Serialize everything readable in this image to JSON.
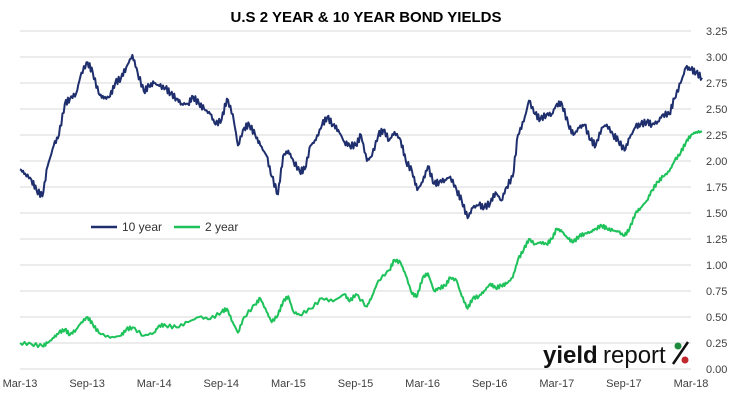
{
  "chart_data": {
    "type": "line",
    "title": "U.S 2 YEAR & 10 YEAR BOND YIELDS",
    "xlabel": "",
    "ylabel": "",
    "x_tick_labels": [
      "Mar-13",
      "Sep-13",
      "Mar-14",
      "Sep-14",
      "Mar-15",
      "Sep-15",
      "Mar-16",
      "Sep-16",
      "Mar-17",
      "Sep-17",
      "Mar-18"
    ],
    "x_range": [
      "2013-03-01",
      "2018-03-01"
    ],
    "y_range": [
      0,
      3.25
    ],
    "y_ticks": [
      "0.00",
      "0.25",
      "0.50",
      "0.75",
      "1.00",
      "1.25",
      "1.50",
      "1.75",
      "2.00",
      "2.25",
      "2.50",
      "2.75",
      "3.00",
      "3.25"
    ],
    "y_axis_side": "right",
    "grid": "horizontal",
    "legend_position": "left, middle",
    "series": [
      {
        "name": "10 year",
        "color": "#1f2f6e",
        "points": [
          [
            "2013-03-01",
            1.92
          ],
          [
            "2013-03-15",
            1.88
          ],
          [
            "2013-04-01",
            1.82
          ],
          [
            "2013-04-15",
            1.72
          ],
          [
            "2013-05-01",
            1.66
          ],
          [
            "2013-05-15",
            1.95
          ],
          [
            "2013-06-01",
            2.15
          ],
          [
            "2013-06-15",
            2.25
          ],
          [
            "2013-07-01",
            2.55
          ],
          [
            "2013-07-15",
            2.6
          ],
          [
            "2013-08-01",
            2.65
          ],
          [
            "2013-08-15",
            2.85
          ],
          [
            "2013-09-01",
            2.95
          ],
          [
            "2013-09-15",
            2.85
          ],
          [
            "2013-10-01",
            2.65
          ],
          [
            "2013-10-15",
            2.6
          ],
          [
            "2013-11-01",
            2.62
          ],
          [
            "2013-11-15",
            2.75
          ],
          [
            "2013-12-01",
            2.8
          ],
          [
            "2013-12-15",
            2.9
          ],
          [
            "2014-01-01",
            3.02
          ],
          [
            "2014-01-15",
            2.85
          ],
          [
            "2014-02-01",
            2.67
          ],
          [
            "2014-02-15",
            2.72
          ],
          [
            "2014-03-01",
            2.75
          ],
          [
            "2014-03-15",
            2.72
          ],
          [
            "2014-04-01",
            2.7
          ],
          [
            "2014-04-15",
            2.65
          ],
          [
            "2014-05-01",
            2.6
          ],
          [
            "2014-05-15",
            2.55
          ],
          [
            "2014-06-01",
            2.55
          ],
          [
            "2014-06-15",
            2.62
          ],
          [
            "2014-07-01",
            2.55
          ],
          [
            "2014-07-15",
            2.5
          ],
          [
            "2014-08-01",
            2.45
          ],
          [
            "2014-08-15",
            2.35
          ],
          [
            "2014-09-01",
            2.4
          ],
          [
            "2014-09-15",
            2.6
          ],
          [
            "2014-10-01",
            2.45
          ],
          [
            "2014-10-15",
            2.15
          ],
          [
            "2014-11-01",
            2.32
          ],
          [
            "2014-11-15",
            2.35
          ],
          [
            "2014-12-01",
            2.25
          ],
          [
            "2014-12-15",
            2.15
          ],
          [
            "2015-01-01",
            2.05
          ],
          [
            "2015-01-15",
            1.85
          ],
          [
            "2015-02-01",
            1.68
          ],
          [
            "2015-02-15",
            2.05
          ],
          [
            "2015-03-01",
            2.1
          ],
          [
            "2015-03-15",
            2.0
          ],
          [
            "2015-04-01",
            1.9
          ],
          [
            "2015-04-15",
            1.92
          ],
          [
            "2015-05-01",
            2.15
          ],
          [
            "2015-05-15",
            2.2
          ],
          [
            "2015-06-01",
            2.35
          ],
          [
            "2015-06-15",
            2.42
          ],
          [
            "2015-07-01",
            2.35
          ],
          [
            "2015-07-15",
            2.3
          ],
          [
            "2015-08-01",
            2.18
          ],
          [
            "2015-08-15",
            2.15
          ],
          [
            "2015-09-01",
            2.15
          ],
          [
            "2015-09-15",
            2.25
          ],
          [
            "2015-10-01",
            2.0
          ],
          [
            "2015-10-15",
            2.05
          ],
          [
            "2015-11-01",
            2.25
          ],
          [
            "2015-11-15",
            2.3
          ],
          [
            "2015-12-01",
            2.2
          ],
          [
            "2015-12-15",
            2.28
          ],
          [
            "2016-01-01",
            2.2
          ],
          [
            "2016-01-15",
            2.0
          ],
          [
            "2016-02-01",
            1.9
          ],
          [
            "2016-02-15",
            1.72
          ],
          [
            "2016-03-01",
            1.8
          ],
          [
            "2016-03-15",
            1.95
          ],
          [
            "2016-04-01",
            1.78
          ],
          [
            "2016-04-15",
            1.8
          ],
          [
            "2016-05-01",
            1.82
          ],
          [
            "2016-05-15",
            1.85
          ],
          [
            "2016-06-01",
            1.72
          ],
          [
            "2016-06-15",
            1.62
          ],
          [
            "2016-07-01",
            1.45
          ],
          [
            "2016-07-15",
            1.55
          ],
          [
            "2016-08-01",
            1.58
          ],
          [
            "2016-08-15",
            1.55
          ],
          [
            "2016-09-01",
            1.6
          ],
          [
            "2016-09-15",
            1.7
          ],
          [
            "2016-10-01",
            1.62
          ],
          [
            "2016-10-15",
            1.75
          ],
          [
            "2016-11-01",
            1.85
          ],
          [
            "2016-11-15",
            2.25
          ],
          [
            "2016-12-01",
            2.38
          ],
          [
            "2016-12-15",
            2.58
          ],
          [
            "2017-01-01",
            2.45
          ],
          [
            "2017-01-15",
            2.4
          ],
          [
            "2017-02-01",
            2.45
          ],
          [
            "2017-02-15",
            2.45
          ],
          [
            "2017-03-01",
            2.55
          ],
          [
            "2017-03-15",
            2.55
          ],
          [
            "2017-04-01",
            2.35
          ],
          [
            "2017-04-15",
            2.25
          ],
          [
            "2017-05-01",
            2.32
          ],
          [
            "2017-05-15",
            2.35
          ],
          [
            "2017-06-01",
            2.2
          ],
          [
            "2017-06-15",
            2.15
          ],
          [
            "2017-07-01",
            2.32
          ],
          [
            "2017-07-15",
            2.35
          ],
          [
            "2017-08-01",
            2.25
          ],
          [
            "2017-08-15",
            2.2
          ],
          [
            "2017-09-01",
            2.1
          ],
          [
            "2017-09-15",
            2.22
          ],
          [
            "2017-10-01",
            2.33
          ],
          [
            "2017-10-15",
            2.35
          ],
          [
            "2017-11-01",
            2.38
          ],
          [
            "2017-11-15",
            2.35
          ],
          [
            "2017-12-01",
            2.38
          ],
          [
            "2017-12-15",
            2.45
          ],
          [
            "2018-01-01",
            2.45
          ],
          [
            "2018-01-15",
            2.6
          ],
          [
            "2018-02-01",
            2.75
          ],
          [
            "2018-02-15",
            2.9
          ],
          [
            "2018-03-01",
            2.88
          ],
          [
            "2018-03-15",
            2.85
          ],
          [
            "2018-03-31",
            2.8
          ]
        ]
      },
      {
        "name": "2 year",
        "color": "#1ec25a",
        "points": [
          [
            "2013-03-01",
            0.25
          ],
          [
            "2013-04-01",
            0.24
          ],
          [
            "2013-05-01",
            0.22
          ],
          [
            "2013-05-15",
            0.25
          ],
          [
            "2013-06-01",
            0.3
          ],
          [
            "2013-06-15",
            0.35
          ],
          [
            "2013-07-01",
            0.38
          ],
          [
            "2013-07-15",
            0.33
          ],
          [
            "2013-08-01",
            0.38
          ],
          [
            "2013-08-15",
            0.45
          ],
          [
            "2013-09-01",
            0.5
          ],
          [
            "2013-09-15",
            0.43
          ],
          [
            "2013-10-01",
            0.35
          ],
          [
            "2013-11-01",
            0.3
          ],
          [
            "2013-12-01",
            0.32
          ],
          [
            "2013-12-15",
            0.38
          ],
          [
            "2014-01-01",
            0.4
          ],
          [
            "2014-02-01",
            0.32
          ],
          [
            "2014-03-01",
            0.35
          ],
          [
            "2014-03-15",
            0.42
          ],
          [
            "2014-04-01",
            0.42
          ],
          [
            "2014-05-01",
            0.4
          ],
          [
            "2014-06-01",
            0.45
          ],
          [
            "2014-07-01",
            0.5
          ],
          [
            "2014-08-01",
            0.48
          ],
          [
            "2014-09-01",
            0.55
          ],
          [
            "2014-09-15",
            0.58
          ],
          [
            "2014-10-01",
            0.45
          ],
          [
            "2014-10-15",
            0.35
          ],
          [
            "2014-11-01",
            0.5
          ],
          [
            "2014-12-01",
            0.62
          ],
          [
            "2014-12-15",
            0.68
          ],
          [
            "2015-01-01",
            0.55
          ],
          [
            "2015-01-15",
            0.45
          ],
          [
            "2015-02-01",
            0.52
          ],
          [
            "2015-02-15",
            0.65
          ],
          [
            "2015-03-01",
            0.7
          ],
          [
            "2015-03-15",
            0.55
          ],
          [
            "2015-04-01",
            0.52
          ],
          [
            "2015-05-01",
            0.58
          ],
          [
            "2015-06-01",
            0.68
          ],
          [
            "2015-07-01",
            0.65
          ],
          [
            "2015-08-01",
            0.72
          ],
          [
            "2015-08-15",
            0.65
          ],
          [
            "2015-09-01",
            0.72
          ],
          [
            "2015-10-01",
            0.6
          ],
          [
            "2015-10-15",
            0.7
          ],
          [
            "2015-11-01",
            0.85
          ],
          [
            "2015-12-01",
            0.95
          ],
          [
            "2015-12-15",
            1.05
          ],
          [
            "2016-01-01",
            1.02
          ],
          [
            "2016-01-15",
            0.9
          ],
          [
            "2016-02-01",
            0.72
          ],
          [
            "2016-02-15",
            0.7
          ],
          [
            "2016-03-01",
            0.88
          ],
          [
            "2016-03-15",
            0.92
          ],
          [
            "2016-04-01",
            0.75
          ],
          [
            "2016-04-15",
            0.78
          ],
          [
            "2016-05-01",
            0.8
          ],
          [
            "2016-05-15",
            0.88
          ],
          [
            "2016-06-01",
            0.85
          ],
          [
            "2016-06-15",
            0.7
          ],
          [
            "2016-07-01",
            0.58
          ],
          [
            "2016-07-15",
            0.68
          ],
          [
            "2016-08-01",
            0.7
          ],
          [
            "2016-08-15",
            0.75
          ],
          [
            "2016-09-01",
            0.82
          ],
          [
            "2016-09-15",
            0.78
          ],
          [
            "2016-10-01",
            0.8
          ],
          [
            "2016-10-15",
            0.82
          ],
          [
            "2016-11-01",
            0.88
          ],
          [
            "2016-11-15",
            1.05
          ],
          [
            "2016-12-01",
            1.15
          ],
          [
            "2016-12-15",
            1.25
          ],
          [
            "2017-01-01",
            1.2
          ],
          [
            "2017-01-15",
            1.22
          ],
          [
            "2017-02-01",
            1.2
          ],
          [
            "2017-02-15",
            1.25
          ],
          [
            "2017-03-01",
            1.35
          ],
          [
            "2017-03-15",
            1.32
          ],
          [
            "2017-04-01",
            1.25
          ],
          [
            "2017-04-15",
            1.22
          ],
          [
            "2017-05-01",
            1.28
          ],
          [
            "2017-05-15",
            1.3
          ],
          [
            "2017-06-01",
            1.32
          ],
          [
            "2017-06-15",
            1.35
          ],
          [
            "2017-07-01",
            1.38
          ],
          [
            "2017-07-15",
            1.35
          ],
          [
            "2017-08-01",
            1.33
          ],
          [
            "2017-08-15",
            1.32
          ],
          [
            "2017-09-01",
            1.28
          ],
          [
            "2017-09-15",
            1.35
          ],
          [
            "2017-10-01",
            1.5
          ],
          [
            "2017-10-15",
            1.55
          ],
          [
            "2017-11-01",
            1.62
          ],
          [
            "2017-11-15",
            1.72
          ],
          [
            "2017-12-01",
            1.8
          ],
          [
            "2017-12-15",
            1.85
          ],
          [
            "2018-01-01",
            1.9
          ],
          [
            "2018-01-15",
            2.0
          ],
          [
            "2018-02-01",
            2.08
          ],
          [
            "2018-02-15",
            2.18
          ],
          [
            "2018-03-01",
            2.25
          ],
          [
            "2018-03-15",
            2.28
          ],
          [
            "2018-03-31",
            2.28
          ]
        ]
      }
    ]
  },
  "brand": {
    "logo_text_a": "yield",
    "logo_text_b": "report",
    "logo_symbol": "%",
    "logo_color": "#111111",
    "logo_accent_green": "#1e8a3c",
    "logo_accent_red": "#c0282d"
  },
  "style": {
    "gridline_color": "#d9d9d9",
    "axis_text_color": "#404040",
    "title_color": "#000000"
  }
}
